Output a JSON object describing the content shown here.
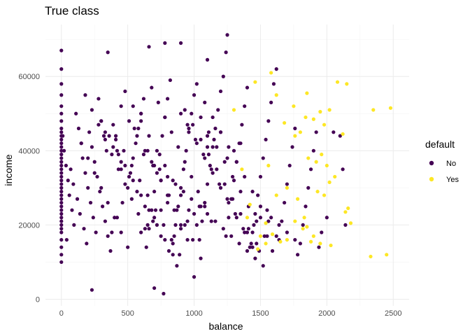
{
  "chart_data": {
    "type": "scatter",
    "title": "True class",
    "xlabel": "balance",
    "ylabel": "income",
    "xlim": [
      -120,
      2620
    ],
    "ylim": [
      -1800,
      74000
    ],
    "x_ticks": [
      0,
      500,
      1000,
      1500,
      2000,
      2500
    ],
    "y_ticks": [
      0,
      20000,
      40000,
      60000
    ],
    "x_tick_labels": [
      "0",
      "500",
      "1000",
      "1500",
      "2000",
      "2500"
    ],
    "y_tick_labels": [
      "0",
      "20000",
      "40000",
      "60000"
    ],
    "grid": true,
    "legend": {
      "title": "default",
      "position": "right",
      "entries": [
        {
          "label": "No",
          "color": "#440154"
        },
        {
          "label": "Yes",
          "color": "#FDE725"
        }
      ]
    },
    "series": [
      {
        "name": "No",
        "color": "#440154",
        "x": [
          0,
          0,
          0,
          0,
          0,
          0,
          0,
          0,
          0,
          0,
          0,
          0,
          0,
          0,
          0,
          0,
          0,
          0,
          0,
          0,
          0,
          0,
          0,
          0,
          0,
          0,
          0,
          0,
          0,
          0,
          0,
          0,
          0,
          0,
          0,
          0,
          0,
          0,
          0,
          0,
          10,
          20,
          35,
          50,
          60,
          80,
          95,
          110,
          130,
          150,
          160,
          180,
          200,
          220,
          240,
          260,
          280,
          300,
          320,
          340,
          40,
          70,
          90,
          120,
          140,
          170,
          190,
          210,
          230,
          250,
          270,
          290,
          310,
          330,
          350,
          370,
          390,
          410,
          430,
          450,
          230,
          350,
          700,
          770,
          1250,
          900,
          780,
          1240,
          660,
          1100,
          380,
          420,
          460,
          500,
          520,
          540,
          560,
          580,
          600,
          620,
          640,
          660,
          680,
          700,
          720,
          740,
          760,
          780,
          800,
          820,
          840,
          860,
          880,
          900,
          920,
          940,
          960,
          980,
          1000,
          1020,
          1040,
          1060,
          1080,
          1100,
          1120,
          1140,
          1160,
          1180,
          1200,
          1220,
          1240,
          1260,
          1280,
          1300,
          1320,
          1340,
          1360,
          1380,
          1400,
          1420,
          1440,
          1460,
          1480,
          1500,
          1520,
          1540,
          1560,
          1580,
          1600,
          1620,
          1640,
          1660,
          1680,
          1700,
          1720,
          1740,
          1760,
          1780,
          1800,
          1820,
          1840,
          1860,
          1880,
          1900,
          1920,
          1940,
          1960,
          2000,
          2050,
          2100,
          2120,
          2140,
          410,
          470,
          530,
          590,
          650,
          710,
          770,
          830,
          890,
          950,
          1010,
          1070,
          1130,
          1190,
          1250,
          1310,
          1370,
          1430,
          1490,
          1550,
          450,
          510,
          570,
          630,
          690,
          750,
          810,
          870,
          930,
          990,
          1050,
          1110,
          1170,
          1230,
          1290,
          1350,
          1410,
          1470,
          1530,
          1590,
          480,
          540,
          600,
          660,
          720,
          780,
          840,
          900,
          960,
          1020,
          1080,
          1140,
          1200,
          1260,
          1320,
          1380,
          1440,
          1500,
          1560,
          1620,
          300,
          360,
          420,
          480,
          540,
          600,
          660,
          720,
          780,
          840,
          900,
          960,
          1020,
          1080,
          1140,
          1200,
          1260,
          1320,
          1380,
          1440,
          330,
          390,
          450,
          510,
          570,
          630,
          690,
          750,
          810,
          870,
          930,
          990,
          1050,
          1110,
          1170,
          1230,
          1290,
          1350,
          1410,
          1470,
          150,
          200,
          250,
          300,
          350,
          400,
          450,
          500,
          550,
          600,
          650,
          700,
          750,
          800,
          850,
          900,
          950,
          1000,
          1050,
          1100,
          180,
          230,
          280,
          330,
          380,
          430,
          480,
          530,
          580,
          630,
          680,
          730,
          780,
          830,
          880,
          930,
          980,
          1030,
          1080,
          1130,
          600,
          650,
          700,
          750,
          800,
          850,
          900,
          950,
          1000,
          1050,
          1100,
          1150,
          1200,
          1250,
          1300,
          1350,
          1400,
          1450,
          1500,
          1550,
          620,
          680,
          740,
          800,
          860,
          920,
          980,
          1040,
          1100,
          1160,
          1220,
          1280,
          1340,
          1400,
          1460,
          1520,
          1580,
          1640,
          1700,
          1760
        ],
        "y": [
          67000,
          62000,
          58000,
          55000,
          52000,
          50000,
          48000,
          46000,
          45000,
          44000,
          43000,
          42000,
          41000,
          40000,
          39000,
          38000,
          37000,
          36000,
          35000,
          34000,
          33000,
          32000,
          31000,
          30000,
          29000,
          28000,
          27000,
          26000,
          25000,
          24000,
          23000,
          22000,
          21000,
          20000,
          19000,
          18000,
          16000,
          14000,
          12000,
          10000,
          44000,
          40000,
          36000,
          32000,
          28000,
          24000,
          20000,
          50000,
          46000,
          42000,
          38000,
          34000,
          30000,
          26000,
          22000,
          18000,
          54000,
          48000,
          44000,
          40000,
          16000,
          35000,
          31000,
          27000,
          23000,
          19000,
          15000,
          45000,
          41000,
          37000,
          33000,
          29000,
          25000,
          21000,
          17000,
          13000,
          47000,
          43000,
          39000,
          35000,
          2500,
          66500,
          3000,
          1500,
          71200,
          69000,
          69000,
          66500,
          68000,
          64500,
          18000,
          22000,
          26000,
          30000,
          34000,
          38000,
          42000,
          46000,
          50000,
          54000,
          14000,
          19000,
          24000,
          29000,
          34000,
          39000,
          44000,
          49000,
          54000,
          59000,
          15000,
          20000,
          25000,
          30000,
          35000,
          40000,
          45000,
          50000,
          55000,
          58000,
          16000,
          21000,
          26000,
          31000,
          36000,
          41000,
          46000,
          51000,
          56000,
          60000,
          17000,
          22000,
          27000,
          32000,
          37000,
          42000,
          47000,
          52000,
          57000,
          14000,
          18000,
          23000,
          28000,
          33000,
          38000,
          43000,
          48000,
          53000,
          58000,
          62000,
          16000,
          21000,
          26000,
          31000,
          36000,
          41000,
          46000,
          12000,
          15000,
          20000,
          25000,
          30000,
          35000,
          40000,
          45000,
          14000,
          18000,
          22000,
          45000,
          44000,
          35000,
          20000,
          44000,
          40000,
          36000,
          32000,
          28000,
          24000,
          20000,
          16000,
          12000,
          47000,
          43000,
          39000,
          35000,
          31000,
          27000,
          23000,
          19000,
          15000,
          13000,
          17000,
          52000,
          48000,
          44000,
          40000,
          36000,
          32000,
          28000,
          24000,
          20000,
          16000,
          49000,
          45000,
          41000,
          37000,
          33000,
          29000,
          25000,
          21000,
          17000,
          13000,
          56000,
          52000,
          48000,
          44000,
          40000,
          36000,
          32000,
          28000,
          24000,
          20000,
          53000,
          49000,
          45000,
          41000,
          37000,
          33000,
          29000,
          25000,
          21000,
          17000,
          48000,
          44000,
          40000,
          36000,
          32000,
          28000,
          24000,
          20000,
          16000,
          12000,
          50000,
          46000,
          42000,
          38000,
          34000,
          30000,
          26000,
          22000,
          18000,
          14000,
          45000,
          41000,
          37000,
          33000,
          29000,
          25000,
          21000,
          17000,
          13000,
          9000,
          51000,
          47000,
          43000,
          39000,
          35000,
          31000,
          27000,
          23000,
          19000,
          15000,
          42000,
          38000,
          34000,
          30000,
          26000,
          22000,
          18000,
          14000,
          46000,
          50000,
          40000,
          36000,
          32000,
          28000,
          24000,
          20000,
          16000,
          6000,
          11000,
          44000,
          55000,
          51000,
          47000,
          43000,
          39000,
          35000,
          31000,
          27000,
          23000,
          19000,
          57000,
          53000,
          49000,
          45000,
          41000,
          37000,
          33000,
          29000,
          25000,
          21000,
          18000,
          20000,
          22000,
          24000,
          26000,
          17000,
          19000,
          21000,
          23000,
          25000,
          41000,
          43000,
          45000,
          38000,
          40000,
          42000,
          18000,
          20000,
          22000,
          24000,
          39000,
          37000,
          35000,
          33000,
          31000,
          29000,
          27000,
          25000,
          23000,
          21000,
          19000,
          17000,
          15000,
          13000,
          11000,
          9000,
          22000,
          20000,
          18000,
          16000
        ]
      },
      {
        "name": "Yes",
        "color": "#FDE725",
        "x": [
          1580,
          1460,
          1850,
          1620,
          1750,
          1840,
          2020,
          2080,
          2150,
          2480,
          2350,
          1900,
          1950,
          1980,
          1680,
          1800,
          1860,
          1920,
          1960,
          2000,
          2120,
          2140,
          2160,
          2180,
          2020,
          1700,
          1780,
          1620,
          1560,
          1540,
          1500,
          1480,
          1400,
          1420,
          1360,
          1300,
          1820,
          1850,
          1900,
          1950,
          2450,
          2330,
          2030,
          1880,
          1830,
          1760,
          1700,
          1650,
          1590,
          1540,
          1760,
          2060,
          1930,
          1980
        ],
        "y": [
          61000,
          58500,
          55500,
          55000,
          52000,
          49000,
          51000,
          58500,
          58000,
          51500,
          51000,
          48500,
          50500,
          47000,
          47500,
          45000,
          38000,
          37000,
          39000,
          36000,
          44500,
          23500,
          24500,
          20500,
          31500,
          30000,
          27000,
          28000,
          36000,
          15000,
          17000,
          13500,
          22000,
          25500,
          35000,
          51000,
          19000,
          19500,
          17000,
          15000,
          12000,
          11500,
          14500,
          15500,
          22000,
          21000,
          16000,
          15500,
          17500,
          20500,
          44000,
          33000,
          29000,
          28000
        ]
      }
    ]
  }
}
